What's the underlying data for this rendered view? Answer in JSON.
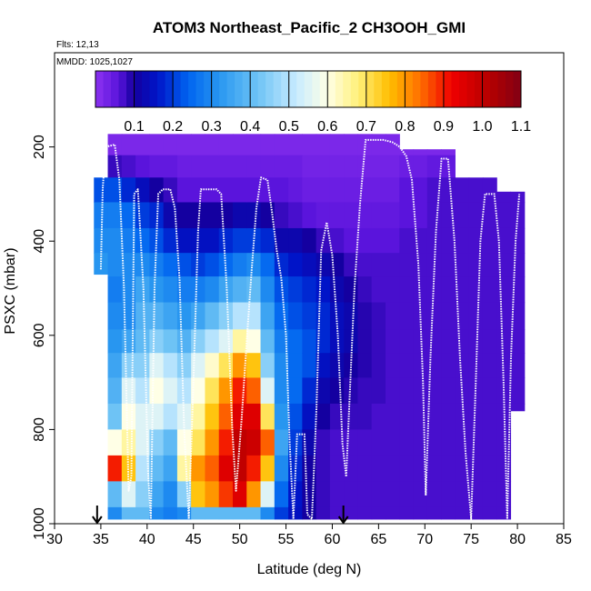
{
  "chart_data": {
    "type": "heatmap",
    "title": "ATOM3 Northeast_Pacific_2 CH3OOH_GMI",
    "annotations": [
      "Flts: 12,13",
      "MMDD: 1025,1027"
    ],
    "xlabel": "Latitude (deg N)",
    "ylabel": "PSXC (mbar)",
    "xlim": [
      30,
      85
    ],
    "ylim": [
      1000,
      0
    ],
    "x_ticks": [
      30,
      35,
      40,
      45,
      50,
      55,
      60,
      65,
      70,
      75,
      80,
      85
    ],
    "y_ticks": [
      200,
      400,
      600,
      800,
      1000
    ],
    "colorbar": {
      "range": [
        0,
        1.1
      ],
      "ticks": [
        "0.1",
        "0.2",
        "0.3",
        "0.4",
        "0.5",
        "0.6",
        "0.7",
        "0.8",
        "0.9",
        "1.0",
        "1.1"
      ],
      "placement": "top"
    },
    "grid": false,
    "pressure_levels": [
      195,
      240,
      290,
      345,
      400,
      450,
      500,
      560,
      615,
      660,
      720,
      770,
      830,
      880,
      940,
      990
    ],
    "columns": [
      {
        "lat": 35.0,
        "top": 265,
        "bottom": 470,
        "values": [
          0.02,
          0.07,
          0.22,
          0.28,
          0.3,
          0.32,
          0.3,
          0.35,
          0.3,
          0.3,
          0.25,
          0.25,
          0.25,
          0.25,
          0.25,
          0.25
        ]
      },
      {
        "lat": 36.5,
        "top": 170,
        "bottom": 990,
        "values": [
          0.02,
          0.08,
          0.22,
          0.28,
          0.3,
          0.3,
          0.28,
          0.3,
          0.32,
          0.35,
          0.38,
          0.42,
          0.6,
          0.9,
          0.4,
          0.3
        ]
      },
      {
        "lat": 38.0,
        "top": 170,
        "bottom": 990,
        "values": [
          0.02,
          0.07,
          0.18,
          0.25,
          0.28,
          0.3,
          0.3,
          0.3,
          0.35,
          0.45,
          0.55,
          0.6,
          0.65,
          0.75,
          0.55,
          0.4
        ]
      },
      {
        "lat": 39.5,
        "top": 170,
        "bottom": 990,
        "values": [
          0.02,
          0.06,
          0.14,
          0.2,
          0.25,
          0.3,
          0.35,
          0.38,
          0.4,
          0.45,
          0.5,
          0.55,
          0.55,
          0.5,
          0.45,
          0.4
        ]
      },
      {
        "lat": 41.0,
        "top": 170,
        "bottom": 990,
        "values": [
          0.02,
          0.05,
          0.1,
          0.18,
          0.22,
          0.28,
          0.32,
          0.38,
          0.45,
          0.55,
          0.6,
          0.55,
          0.45,
          0.4,
          0.35,
          0.3
        ]
      },
      {
        "lat": 42.5,
        "top": 170,
        "bottom": 990,
        "values": [
          0.02,
          0.05,
          0.08,
          0.12,
          0.18,
          0.25,
          0.3,
          0.35,
          0.42,
          0.5,
          0.55,
          0.5,
          0.4,
          0.35,
          0.3,
          0.28
        ]
      },
      {
        "lat": 44.0,
        "top": 170,
        "bottom": 990,
        "values": [
          0.02,
          0.04,
          0.06,
          0.1,
          0.15,
          0.22,
          0.28,
          0.32,
          0.38,
          0.45,
          0.5,
          0.55,
          0.6,
          0.65,
          0.45,
          0.3
        ]
      },
      {
        "lat": 45.5,
        "top": 170,
        "bottom": 990,
        "values": [
          0.02,
          0.04,
          0.06,
          0.1,
          0.15,
          0.2,
          0.28,
          0.35,
          0.45,
          0.55,
          0.6,
          0.65,
          0.7,
          0.8,
          0.75,
          0.4
        ]
      },
      {
        "lat": 47.0,
        "top": 170,
        "bottom": 990,
        "values": [
          0.02,
          0.04,
          0.06,
          0.1,
          0.15,
          0.22,
          0.3,
          0.4,
          0.5,
          0.62,
          0.7,
          0.75,
          0.8,
          0.85,
          0.8,
          0.4
        ]
      },
      {
        "lat": 48.5,
        "top": 170,
        "bottom": 990,
        "values": [
          0.02,
          0.04,
          0.06,
          0.1,
          0.18,
          0.25,
          0.35,
          0.45,
          0.55,
          0.7,
          0.8,
          0.85,
          0.9,
          0.95,
          0.88,
          0.4
        ]
      },
      {
        "lat": 50.0,
        "top": 170,
        "bottom": 990,
        "values": [
          0.02,
          0.04,
          0.06,
          0.12,
          0.2,
          0.28,
          0.38,
          0.5,
          0.65,
          0.8,
          0.9,
          0.95,
          1.0,
          1.0,
          0.95,
          0.4
        ]
      },
      {
        "lat": 51.5,
        "top": 170,
        "bottom": 990,
        "values": [
          0.02,
          0.04,
          0.06,
          0.12,
          0.2,
          0.3,
          0.4,
          0.5,
          0.6,
          0.75,
          0.85,
          0.95,
          0.98,
          0.9,
          0.8,
          0.4
        ]
      },
      {
        "lat": 53.0,
        "top": 170,
        "bottom": 990,
        "values": [
          0.02,
          0.04,
          0.06,
          0.1,
          0.18,
          0.25,
          0.3,
          0.35,
          0.4,
          0.45,
          0.55,
          0.7,
          0.85,
          0.75,
          0.55,
          0.3
        ]
      },
      {
        "lat": 54.5,
        "top": 170,
        "bottom": 990,
        "values": [
          0.02,
          0.04,
          0.06,
          0.08,
          0.12,
          0.18,
          0.22,
          0.25,
          0.28,
          0.3,
          0.3,
          0.32,
          0.35,
          0.3,
          0.25,
          0.2
        ]
      },
      {
        "lat": 56.0,
        "top": 170,
        "bottom": 990,
        "values": [
          0.02,
          0.04,
          0.05,
          0.07,
          0.12,
          0.16,
          0.2,
          0.22,
          0.25,
          0.25,
          0.25,
          0.22,
          0.2,
          0.18,
          0.16,
          0.15
        ]
      },
      {
        "lat": 57.5,
        "top": 170,
        "bottom": 990,
        "values": [
          0.02,
          0.03,
          0.04,
          0.06,
          0.1,
          0.14,
          0.18,
          0.2,
          0.22,
          0.22,
          0.18,
          0.15,
          0.12,
          0.1,
          0.1,
          0.1
        ]
      },
      {
        "lat": 59.0,
        "top": 170,
        "bottom": 990,
        "values": [
          0.02,
          0.03,
          0.04,
          0.05,
          0.08,
          0.12,
          0.16,
          0.18,
          0.18,
          0.15,
          0.12,
          0.1,
          0.08,
          0.08,
          0.08,
          0.08
        ]
      },
      {
        "lat": 60.5,
        "top": 170,
        "bottom": 990,
        "values": [
          0.02,
          0.03,
          0.04,
          0.05,
          0.07,
          0.1,
          0.12,
          0.14,
          0.14,
          0.12,
          0.1,
          0.08,
          0.07,
          0.07,
          0.07,
          0.07
        ]
      },
      {
        "lat": 62.0,
        "top": 170,
        "bottom": 990,
        "values": [
          0.02,
          0.03,
          0.04,
          0.05,
          0.06,
          0.08,
          0.1,
          0.12,
          0.12,
          0.1,
          0.09,
          0.08,
          0.07,
          0.07,
          0.07,
          0.07
        ]
      },
      {
        "lat": 63.5,
        "top": 170,
        "bottom": 990,
        "values": [
          0.02,
          0.03,
          0.04,
          0.05,
          0.06,
          0.07,
          0.08,
          0.09,
          0.09,
          0.09,
          0.08,
          0.08,
          0.07,
          0.07,
          0.07,
          0.07
        ]
      },
      {
        "lat": 65.0,
        "top": 170,
        "bottom": 990,
        "values": [
          0.02,
          0.03,
          0.04,
          0.05,
          0.06,
          0.07,
          0.07,
          0.08,
          0.08,
          0.08,
          0.08,
          0.07,
          0.07,
          0.07,
          0.07,
          0.07
        ]
      },
      {
        "lat": 66.5,
        "top": 170,
        "bottom": 990,
        "values": [
          0.02,
          0.03,
          0.04,
          0.05,
          0.06,
          0.07,
          0.07,
          0.07,
          0.07,
          0.07,
          0.07,
          0.07,
          0.07,
          0.07,
          0.07,
          0.07
        ]
      },
      {
        "lat": 68.0,
        "top": 205,
        "bottom": 990,
        "values": [
          0.02,
          0.04,
          0.06,
          0.06,
          0.07,
          0.07,
          0.07,
          0.07,
          0.07,
          0.07,
          0.07,
          0.07,
          0.07,
          0.07,
          0.07,
          0.07
        ]
      },
      {
        "lat": 69.5,
        "top": 205,
        "bottom": 990,
        "values": [
          0.02,
          0.04,
          0.06,
          0.06,
          0.07,
          0.07,
          0.07,
          0.07,
          0.07,
          0.07,
          0.07,
          0.07,
          0.07,
          0.07,
          0.07,
          0.07
        ]
      },
      {
        "lat": 71.0,
        "top": 205,
        "bottom": 990,
        "values": [
          0.02,
          0.05,
          0.07,
          0.07,
          0.07,
          0.07,
          0.07,
          0.07,
          0.07,
          0.07,
          0.07,
          0.07,
          0.07,
          0.07,
          0.07,
          0.07
        ]
      },
      {
        "lat": 72.5,
        "top": 205,
        "bottom": 990,
        "values": [
          0.02,
          0.05,
          0.07,
          0.07,
          0.07,
          0.07,
          0.07,
          0.07,
          0.07,
          0.07,
          0.07,
          0.07,
          0.07,
          0.07,
          0.07,
          0.07
        ]
      },
      {
        "lat": 74.0,
        "top": 265,
        "bottom": 990,
        "values": [
          0.02,
          0.05,
          0.07,
          0.07,
          0.07,
          0.07,
          0.07,
          0.07,
          0.07,
          0.07,
          0.07,
          0.07,
          0.07,
          0.07,
          0.07,
          0.07
        ]
      },
      {
        "lat": 75.5,
        "top": 265,
        "bottom": 990,
        "values": [
          0.02,
          0.05,
          0.07,
          0.07,
          0.07,
          0.07,
          0.07,
          0.07,
          0.07,
          0.07,
          0.07,
          0.07,
          0.07,
          0.07,
          0.07,
          0.07
        ]
      },
      {
        "lat": 77.0,
        "top": 265,
        "bottom": 990,
        "values": [
          0.02,
          0.06,
          0.07,
          0.07,
          0.07,
          0.07,
          0.07,
          0.07,
          0.07,
          0.07,
          0.07,
          0.07,
          0.07,
          0.07,
          0.07,
          0.07
        ]
      },
      {
        "lat": 78.5,
        "top": 295,
        "bottom": 990,
        "values": [
          0.02,
          0.06,
          0.07,
          0.07,
          0.07,
          0.07,
          0.07,
          0.07,
          0.07,
          0.07,
          0.07,
          0.07,
          0.07,
          0.07,
          0.07,
          0.07
        ]
      },
      {
        "lat": 80.0,
        "top": 295,
        "bottom": 760,
        "values": [
          0.02,
          0.06,
          0.07,
          0.07,
          0.07,
          0.07,
          0.07,
          0.07,
          0.07,
          0.07,
          0.07,
          0.07,
          0.07,
          0.07,
          0.07,
          0.07
        ]
      }
    ],
    "flight_track": [
      [
        35.0,
        460
      ],
      [
        35.2,
        290
      ],
      [
        35.5,
        200
      ],
      [
        36.5,
        195
      ],
      [
        37.0,
        270
      ],
      [
        37.5,
        500
      ],
      [
        38.0,
        930
      ],
      [
        38.3,
        900
      ],
      [
        38.6,
        300
      ],
      [
        39.0,
        290
      ],
      [
        39.6,
        500
      ],
      [
        40.1,
        890
      ],
      [
        40.4,
        990
      ],
      [
        40.8,
        500
      ],
      [
        41.2,
        300
      ],
      [
        41.7,
        290
      ],
      [
        42.5,
        290
      ],
      [
        43.0,
        330
      ],
      [
        43.5,
        480
      ],
      [
        44.0,
        800
      ],
      [
        44.5,
        990
      ],
      [
        45.0,
        700
      ],
      [
        45.5,
        380
      ],
      [
        45.8,
        290
      ],
      [
        46.5,
        290
      ],
      [
        47.5,
        290
      ],
      [
        48.0,
        300
      ],
      [
        48.6,
        500
      ],
      [
        49.2,
        800
      ],
      [
        49.6,
        930
      ],
      [
        50.2,
        780
      ],
      [
        50.8,
        600
      ],
      [
        51.3,
        460
      ],
      [
        51.8,
        330
      ],
      [
        52.3,
        265
      ],
      [
        53.0,
        270
      ],
      [
        53.5,
        340
      ],
      [
        54.0,
        420
      ],
      [
        54.5,
        480
      ],
      [
        55.0,
        600
      ],
      [
        55.4,
        830
      ],
      [
        55.8,
        990
      ],
      [
        56.2,
        810
      ],
      [
        57.0,
        810
      ],
      [
        57.3,
        980
      ],
      [
        57.8,
        990
      ],
      [
        58.3,
        750
      ],
      [
        58.8,
        420
      ],
      [
        59.4,
        360
      ],
      [
        60.0,
        430
      ],
      [
        60.6,
        600
      ],
      [
        61.1,
        830
      ],
      [
        61.5,
        900
      ],
      [
        61.9,
        720
      ],
      [
        62.4,
        500
      ],
      [
        63.0,
        320
      ],
      [
        63.6,
        185
      ],
      [
        65.5,
        185
      ],
      [
        66.5,
        190
      ],
      [
        67.3,
        200
      ],
      [
        68.0,
        220
      ],
      [
        68.6,
        270
      ],
      [
        69.3,
        450
      ],
      [
        69.8,
        700
      ],
      [
        70.1,
        940
      ],
      [
        70.6,
        650
      ],
      [
        71.2,
        380
      ],
      [
        71.8,
        225
      ],
      [
        72.5,
        225
      ],
      [
        73.2,
        400
      ],
      [
        73.8,
        650
      ],
      [
        74.4,
        850
      ],
      [
        75.0,
        990
      ],
      [
        75.5,
        700
      ],
      [
        76.0,
        400
      ],
      [
        76.5,
        300
      ],
      [
        77.5,
        300
      ],
      [
        78.0,
        400
      ],
      [
        78.5,
        700
      ],
      [
        78.9,
        990
      ],
      [
        79.3,
        650
      ],
      [
        79.8,
        400
      ],
      [
        80.2,
        300
      ]
    ],
    "arrows": [
      34.6,
      61.2
    ]
  }
}
